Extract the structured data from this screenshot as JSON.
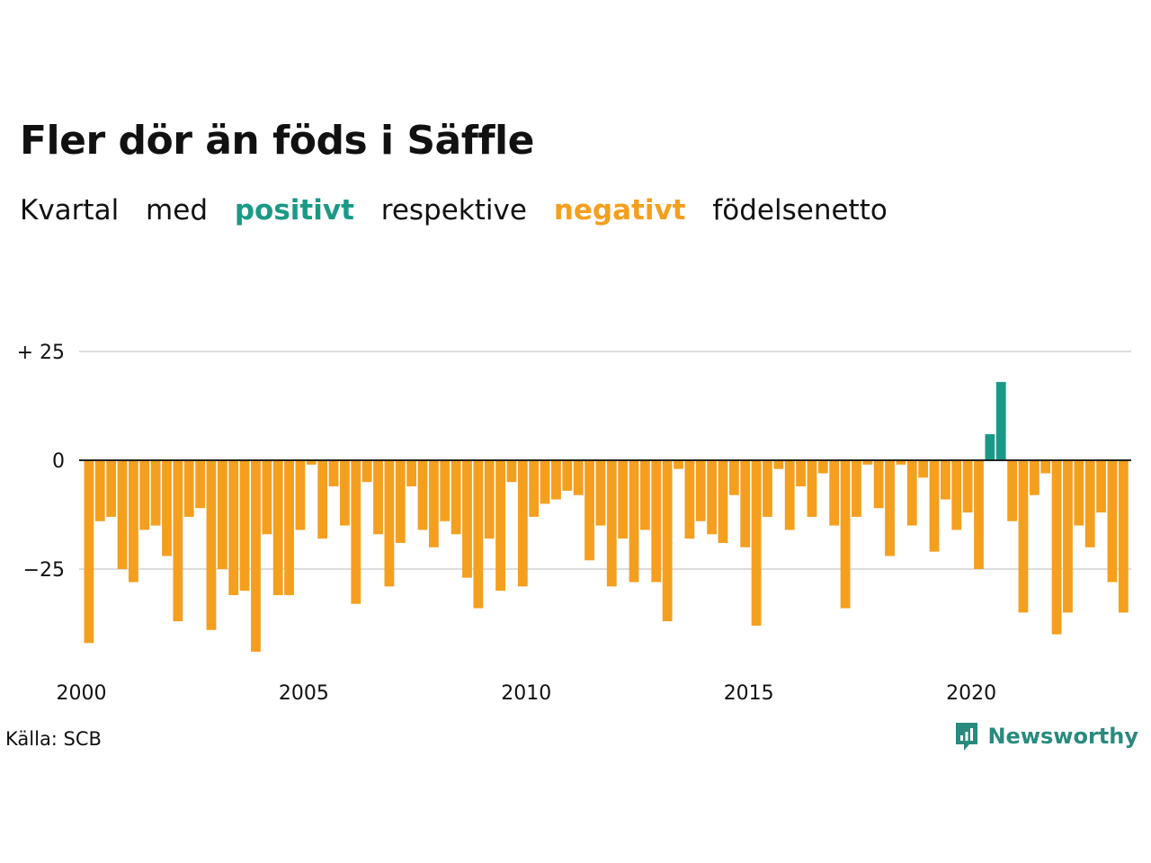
{
  "title": "Fler dör än föds i Säffle",
  "subtitle": {
    "w1": "Kvartal",
    "w2": "med",
    "positive": "positivt",
    "w3": "respektive",
    "negative": "negativt",
    "w4": "födelsenetto"
  },
  "source": "Källa: SCB",
  "brand": "Newsworthy",
  "colors": {
    "positive": "#1a9a86",
    "negative": "#f59f1e",
    "grid": "#dddddd",
    "zero": "#222222"
  },
  "chart_data": {
    "type": "bar",
    "title": "Fler dör än föds i Säffle",
    "xlabel": "",
    "ylabel": "",
    "ylim": [
      -47,
      27
    ],
    "yticks": [
      25,
      0,
      -25
    ],
    "ytick_labels": [
      "+ 25",
      "0",
      "−25"
    ],
    "xticks": [
      "2000",
      "2005",
      "2010",
      "2015",
      "2020"
    ],
    "grid": true,
    "values": [
      -42,
      -14,
      -13,
      -25,
      -28,
      -16,
      -15,
      -22,
      -37,
      -13,
      -11,
      -39,
      -25,
      -31,
      -30,
      -44,
      -17,
      -31,
      -31,
      -16,
      -1,
      -18,
      -6,
      -15,
      -33,
      -5,
      -17,
      -29,
      -19,
      -6,
      -16,
      -20,
      -14,
      -17,
      -27,
      -34,
      -18,
      -30,
      -5,
      -29,
      -13,
      -10,
      -9,
      -7,
      -8,
      -23,
      -15,
      -29,
      -18,
      -28,
      -16,
      -28,
      -37,
      -2,
      -18,
      -14,
      -17,
      -19,
      -8,
      -20,
      -38,
      -13,
      -2,
      -16,
      -6,
      -13,
      -3,
      -15,
      -34,
      -13,
      -1,
      -11,
      -22,
      -1,
      -15,
      -4,
      -21,
      -9,
      -16,
      -12,
      -25,
      6,
      18,
      -14,
      -35,
      -8,
      -3,
      -40,
      -35,
      -15,
      -20,
      -12,
      -28,
      -35
    ]
  }
}
